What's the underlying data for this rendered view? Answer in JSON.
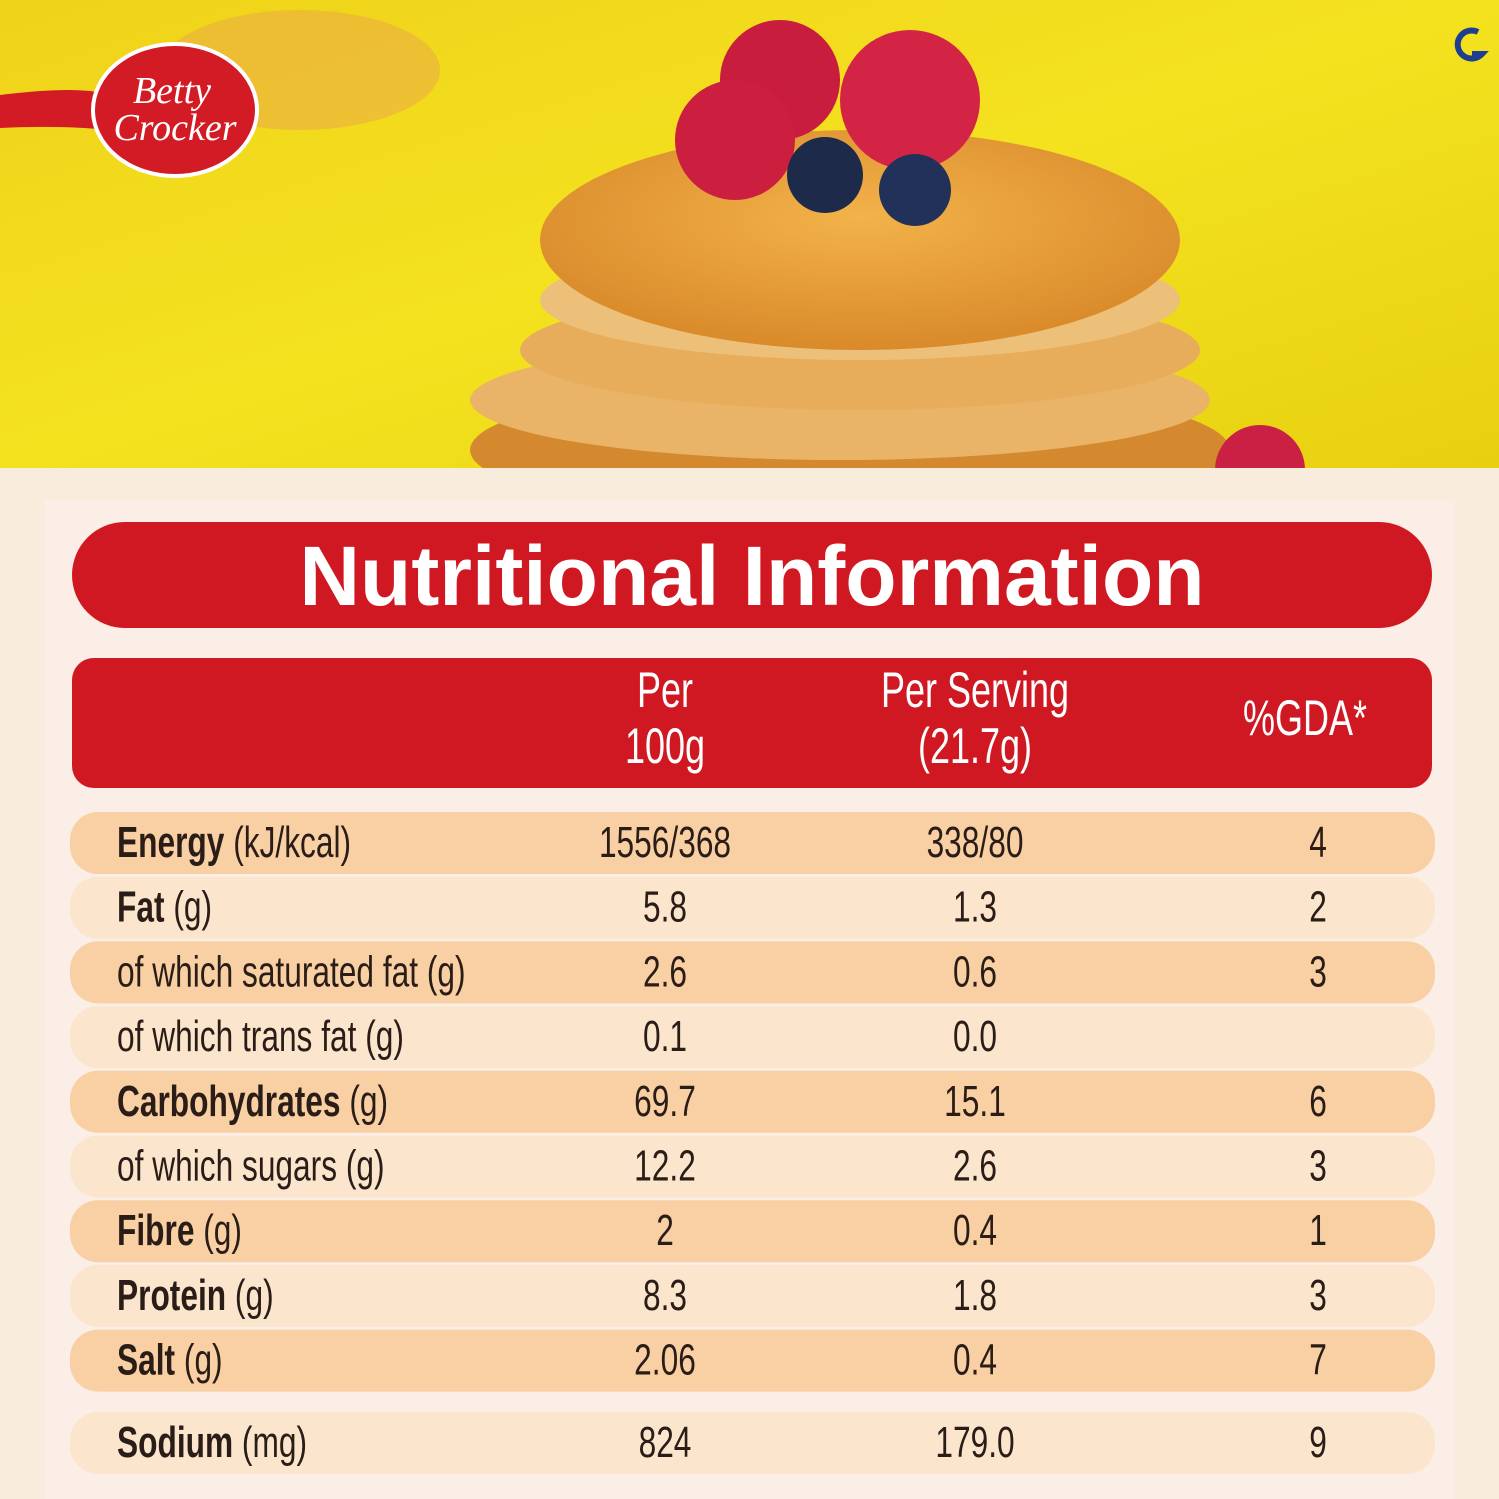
{
  "brand": {
    "line1": "Betty",
    "line2": "Crocker"
  },
  "panel": {
    "title": "Nutritional Information"
  },
  "table": {
    "header": {
      "per100g": [
        "Per",
        "100g"
      ],
      "perServing": [
        "Per Serving",
        "(21.7g)"
      ],
      "gda": "%GDA*"
    },
    "rows": [
      {
        "name": "Energy",
        "unit": "(kJ/kcal)",
        "bold": true,
        "per100g": "1556/368",
        "perServing": "338/80",
        "gda": "4"
      },
      {
        "name": "Fat",
        "unit": "(g)",
        "bold": true,
        "per100g": "5.8",
        "perServing": "1.3",
        "gda": "2"
      },
      {
        "name": "of which saturated fat",
        "unit": "(g)",
        "bold": false,
        "per100g": "2.6",
        "perServing": "0.6",
        "gda": "3"
      },
      {
        "name": "of which trans fat",
        "unit": "(g)",
        "bold": false,
        "per100g": "0.1",
        "perServing": "0.0"
      },
      {
        "name": "Carbohydrates",
        "unit": "(g)",
        "bold": true,
        "per100g": "69.7",
        "perServing": "15.1",
        "gda": "6"
      },
      {
        "name": "of which sugars",
        "unit": "(g)",
        "bold": false,
        "per100g": "12.2",
        "perServing": "2.6",
        "gda": "3"
      },
      {
        "name": "Fibre",
        "unit": "(g)",
        "bold": true,
        "per100g": "2",
        "perServing": "0.4",
        "gda": "1"
      },
      {
        "name": "Protein",
        "unit": "(g)",
        "bold": true,
        "per100g": "8.3",
        "perServing": "1.8",
        "gda": "3"
      },
      {
        "name": "Salt",
        "unit": "(g)",
        "bold": true,
        "per100g": "2.06",
        "perServing": "0.4",
        "gda": "7"
      },
      {
        "name": "Sodium",
        "unit": "(mg)",
        "bold": true,
        "per100g": "824",
        "perServing": "179.0",
        "gda": "9"
      }
    ]
  }
}
